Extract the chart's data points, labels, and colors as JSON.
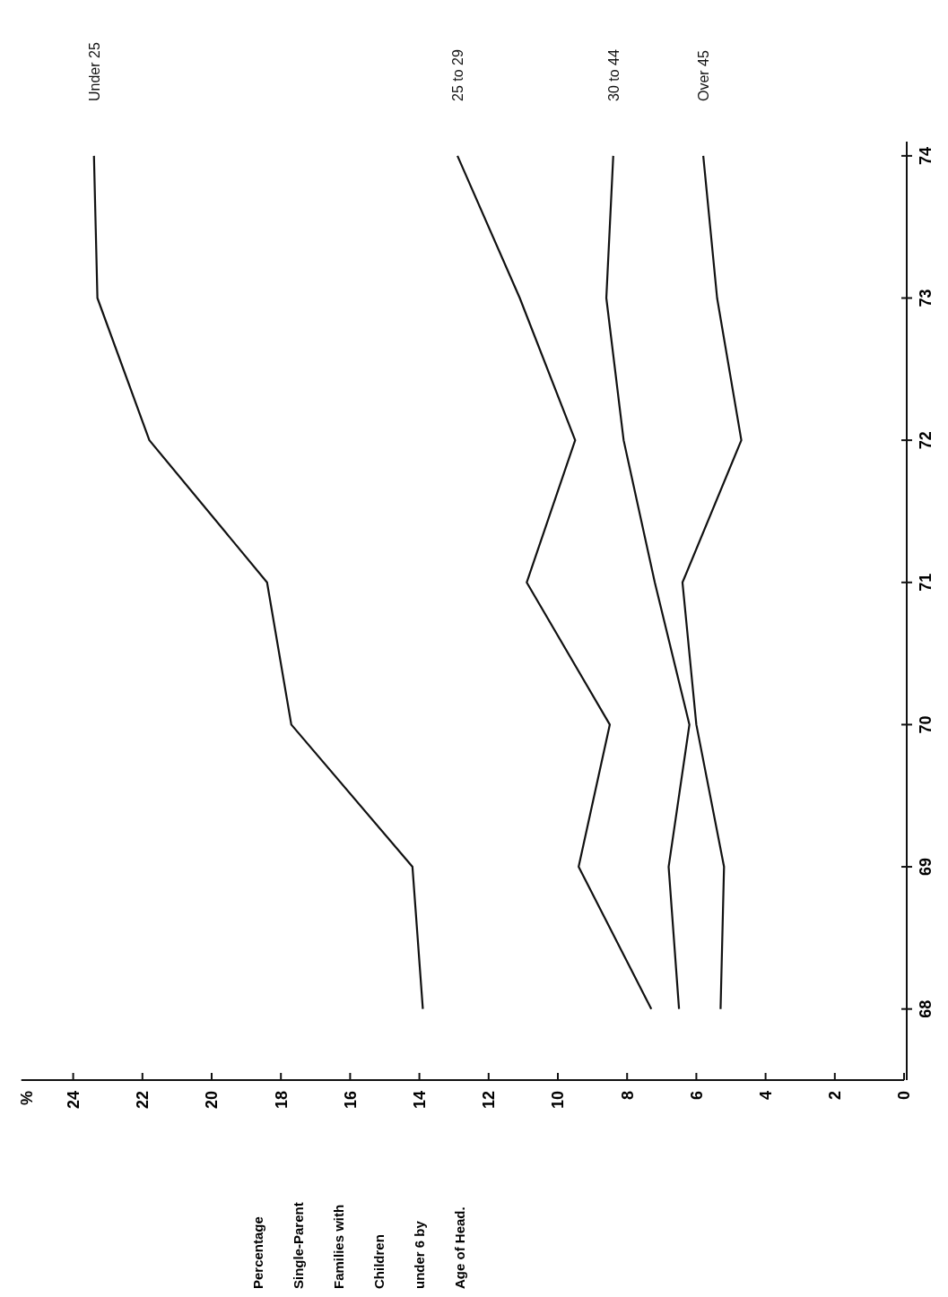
{
  "chart_data": {
    "type": "line",
    "title": "Percentage Single-Parent Families with Children under 6 by Age of Head.",
    "annotations": [
      "%"
    ],
    "series": [
      {
        "name": "Under 25",
        "color": "#111111",
        "x": [
          13.9,
          14.2,
          17.7,
          18.4,
          21.8,
          23.3,
          23.4
        ],
        "values": [
          68,
          69,
          70,
          71,
          72,
          73,
          74
        ]
      },
      {
        "name": "25 to 29",
        "color": "#111111",
        "x": [
          7.3,
          9.4,
          8.5,
          10.9,
          9.5,
          11.1,
          12.9
        ],
        "values": [
          68,
          69,
          70,
          71,
          72,
          73,
          74
        ]
      },
      {
        "name": "30 to 44",
        "color": "#111111",
        "x": [
          6.5,
          6.8,
          6.2,
          7.2,
          8.1,
          8.6,
          8.4
        ],
        "values": [
          68,
          69,
          70,
          71,
          72,
          73,
          74
        ]
      },
      {
        "name": "Over 45",
        "color": "#111111",
        "x": [
          5.3,
          5.2,
          6.0,
          6.4,
          4.7,
          5.4,
          5.8
        ],
        "values": [
          68,
          69,
          70,
          71,
          72,
          73,
          74
        ]
      }
    ],
    "xlim": [
      25.5,
      0
    ],
    "xticks": [
      24,
      22,
      20,
      18,
      16,
      14,
      12,
      10,
      8,
      6,
      4,
      2,
      0
    ],
    "ylim": [
      67.5,
      74.1
    ],
    "yticks": [
      68,
      69,
      70,
      71,
      72,
      73,
      74
    ],
    "grid": false,
    "line_style": "solid"
  }
}
